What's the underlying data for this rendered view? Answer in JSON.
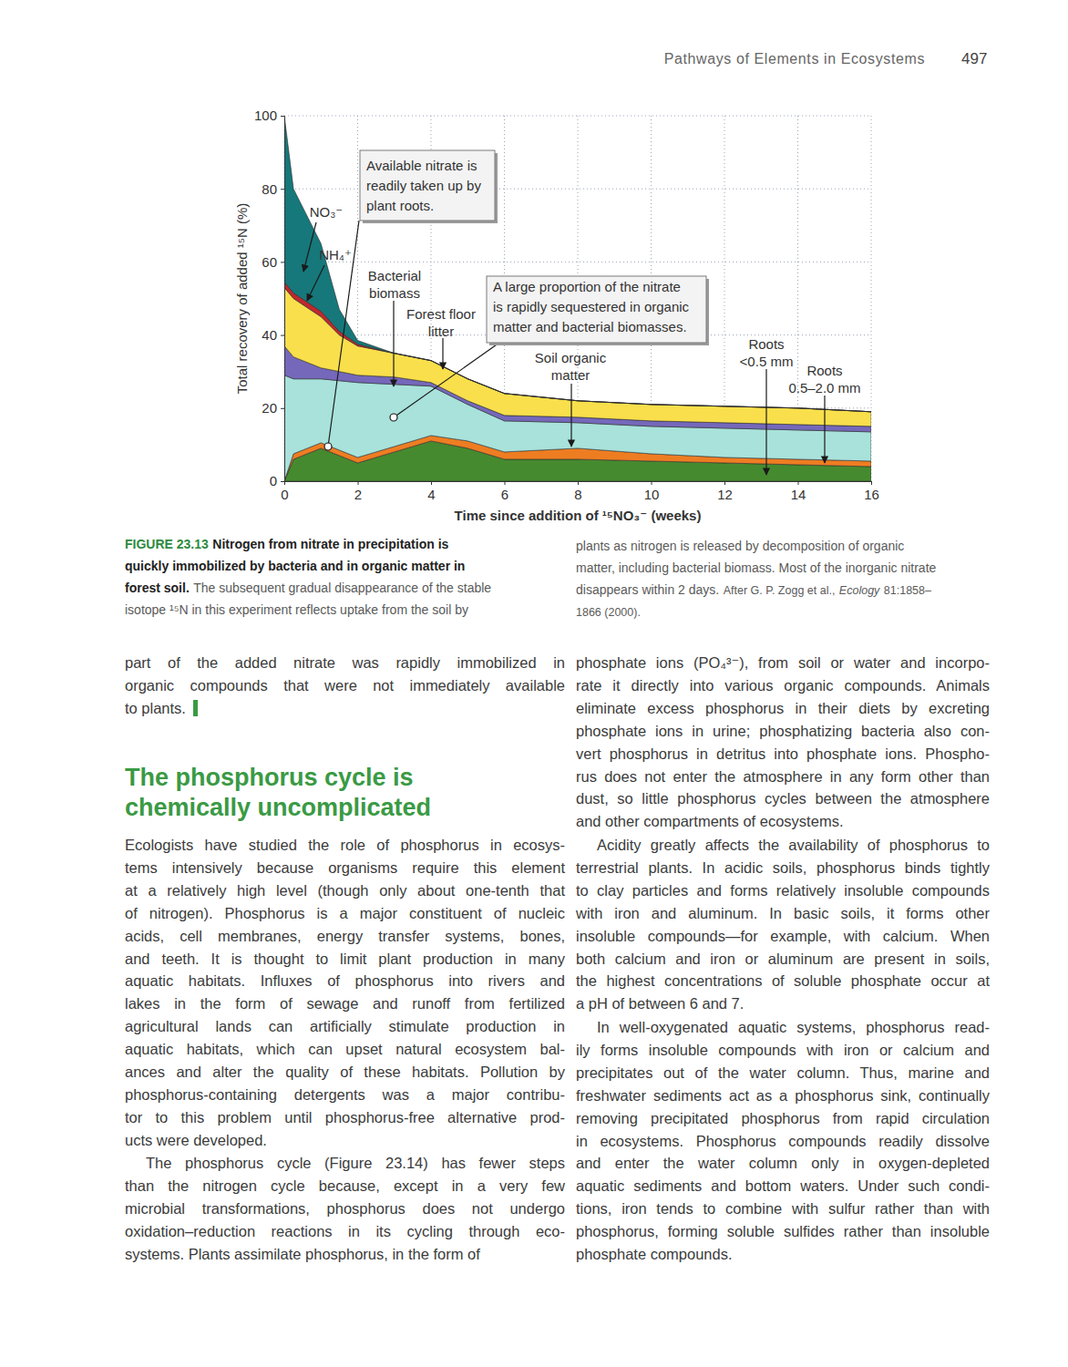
{
  "header": {
    "running_title": "Pathways of Elements in Ecosystems",
    "page_number": "497"
  },
  "chart_data": {
    "type": "area",
    "stacked": true,
    "grid": true,
    "x_label": "Time since addition of ¹⁵NO₃⁻ (weeks)",
    "y_label": "Total recovery of added ¹⁵N (%)",
    "x": [
      0,
      0.25,
      1,
      1.5,
      2,
      3,
      4,
      5,
      6,
      8,
      10,
      12,
      14,
      16
    ],
    "xlim": [
      0,
      16
    ],
    "xticks": [
      0,
      2,
      4,
      6,
      8,
      10,
      12,
      14,
      16
    ],
    "ylim": [
      0,
      100
    ],
    "yticks": [
      0,
      20,
      40,
      60,
      80,
      100
    ],
    "series": [
      {
        "name": "Roots <0.5 mm",
        "color": "#468a2f",
        "values": [
          0,
          6,
          9,
          7,
          5,
          8,
          11,
          9,
          6,
          6,
          5.5,
          5,
          4.5,
          4
        ]
      },
      {
        "name": "Roots 0.5–2.0 mm",
        "color": "#ee7d22",
        "values": [
          0,
          1.5,
          1.5,
          1.5,
          1.5,
          1.5,
          1.5,
          2,
          2,
          3,
          2,
          1.5,
          1.5,
          1.5
        ]
      },
      {
        "name": "Soil organic matter",
        "color": "#a8e2db",
        "values": [
          29,
          20.5,
          17.5,
          19,
          20.5,
          17,
          13.5,
          10,
          8.5,
          7,
          7.5,
          8,
          8,
          8
        ]
      },
      {
        "name": "Bacterial biomass",
        "color": "#7568bb",
        "values": [
          8,
          6,
          3,
          2.5,
          2,
          2,
          1,
          1,
          1.5,
          1.5,
          1.5,
          1.5,
          1.5,
          1.5
        ]
      },
      {
        "name": "Forest floor litter",
        "color": "#f9df4b",
        "values": [
          16,
          16,
          14,
          10,
          8,
          6.5,
          6,
          6,
          6,
          4.5,
          4.5,
          4.5,
          4.5,
          4
        ]
      },
      {
        "name": "NH₄⁺",
        "color": "#c1272d",
        "values": [
          1.5,
          1.5,
          1.5,
          1,
          0.5,
          0,
          0,
          0,
          0,
          0,
          0,
          0,
          0,
          0
        ]
      },
      {
        "name": "NO₃⁻",
        "color": "#16787a",
        "values": [
          45.5,
          28.5,
          18.5,
          6,
          1,
          0,
          0,
          0,
          0,
          0,
          0,
          0,
          0,
          0
        ]
      }
    ],
    "annotations": [
      "Available nitrate is readily taken up by plant roots.",
      "A large proportion of the nitrate is rapidly sequestered in organic matter and bacterial biomasses."
    ]
  },
  "caption": {
    "lines": [
      [
        "FIGURE 23.13",
        "Nitrogen from nitrate in precipitation is"
      ],
      [
        "quickly immobilized by bacteria and in organic matter in"
      ],
      [
        "forest soil.",
        "The subsequent gradual disappearance of the stable"
      ],
      [
        "isotope ¹⁵N in this experiment reflects uptake from the soil by"
      ],
      [
        "plants as nitrogen is released by decomposition of organic"
      ],
      [
        "matter, including bacterial biomass. Most of the inorganic nitrate"
      ],
      [
        "disappears within 2 days.",
        "After G. P. Zogg et al.,",
        "Ecology",
        "81:1858–"
      ],
      [
        "1866 (2000)."
      ]
    ]
  },
  "body": {
    "left_column": {
      "continued_paragraph": [
        "part of the added nitrate was rapidly immobilized in",
        "organic compounds that were not immediately available",
        "to plants."
      ],
      "heading": [
        "The phosphorus cycle is",
        "chemically uncomplicated"
      ],
      "paragraphs": [
        [
          "Ecologists have studied the role of phosphorus in ecosys-",
          "tems intensively because organisms require this element",
          "at a relatively high level (though only about one-tenth that",
          "of nitrogen). Phosphorus is a major constituent of nucleic",
          "acids, cell membranes, energy transfer systems, bones,",
          "and teeth. It is thought to limit plant production in many",
          "aquatic habitats. Influxes of phosphorus into rivers and",
          "lakes in the form of sewage and runoff from fertilized",
          "agricultural lands can artificially stimulate production in",
          "aquatic habitats, which can upset natural ecosystem bal-",
          "ances and alter the quality of these habitats. Pollution by",
          "phosphorus-containing detergents was a major contribu-",
          "tor to this problem until phosphorus-free alternative prod-",
          "ucts were developed."
        ],
        [
          "The phosphorus cycle (Figure 23.14) has fewer steps",
          "than the nitrogen cycle because, except in a very few",
          "microbial transformations, phosphorus does not undergo",
          "oxidation–reduction reactions in its cycling through eco-",
          "systems. Plants assimilate phosphorus, in the form of"
        ]
      ]
    },
    "right_column": {
      "paragraphs": [
        [
          "phosphate ions (PO₄³⁻), from soil or water and incorpo-",
          "rate it directly into various organic compounds. Animals",
          "eliminate excess phosphorus in their diets by excreting",
          "phosphate ions in urine; phosphatizing bacteria also con-",
          "vert phosphorus in detritus into phosphate ions. Phospho-",
          "rus does not enter the atmosphere in any form other than",
          "dust, so little phosphorus cycles between the atmosphere",
          "and other compartments of ecosystems."
        ],
        [
          "Acidity greatly affects the availability of phosphorus to",
          "terrestrial plants. In acidic soils, phosphorus binds tightly",
          "to clay particles and forms relatively insoluble compounds",
          "with iron and aluminum. In basic soils, it forms other",
          "insoluble compounds—for example, with calcium. When",
          "both calcium and iron or aluminum are present in soils,",
          "the highest concentrations of soluble phosphate occur at",
          "a pH of between 6 and 7."
        ],
        [
          "In well-oxygenated aquatic systems, phosphorus read-",
          "ily forms insoluble compounds with iron or calcium and",
          "precipitates out of the water column. Thus, marine and",
          "freshwater sediments act as a phosphorus sink, continually",
          "removing precipitated phosphorus from rapid circulation",
          "in ecosystems. Phosphorus compounds readily dissolve",
          "and enter the water column only in oxygen-depleted",
          "aquatic sediments and bottom waters. Under such condi-",
          "tions, iron tends to combine with sulfur rather than with",
          "phosphorus, forming soluble sulfides rather than insoluble",
          "phosphate compounds."
        ]
      ]
    }
  }
}
